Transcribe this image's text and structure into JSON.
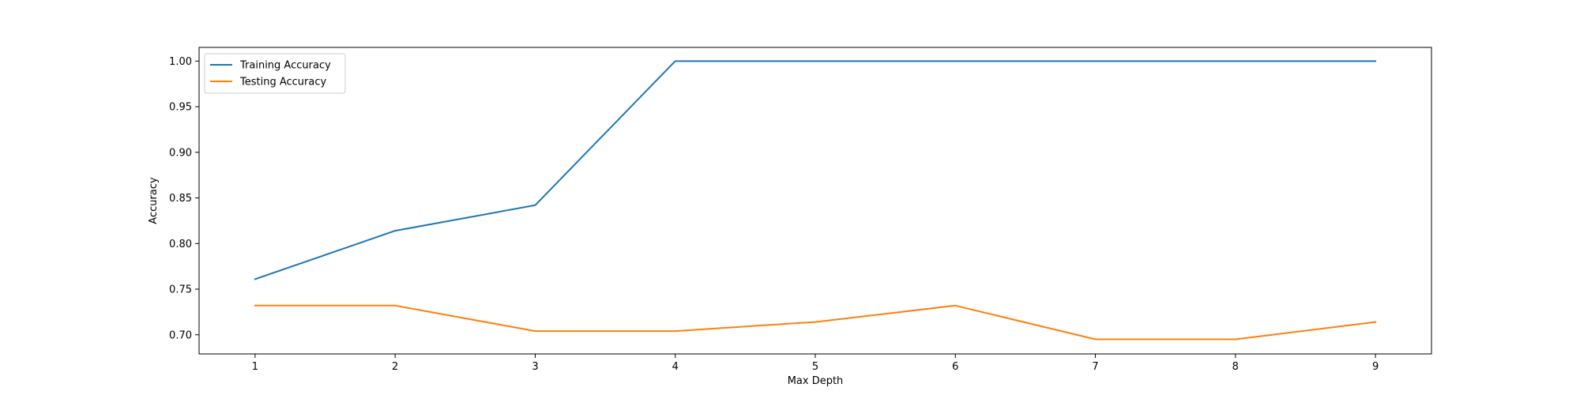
{
  "chart_data": {
    "type": "line",
    "title": "",
    "xlabel": "Max Depth",
    "ylabel": "Accuracy",
    "x": [
      1,
      2,
      3,
      4,
      5,
      6,
      7,
      8,
      9
    ],
    "xlim": [
      0.6,
      9.4
    ],
    "ylim": [
      0.679,
      1.015
    ],
    "xticks": [
      1,
      2,
      3,
      4,
      5,
      6,
      7,
      8,
      9
    ],
    "xtick_labels": [
      "1",
      "2",
      "3",
      "4",
      "5",
      "6",
      "7",
      "8",
      "9"
    ],
    "yticks": [
      0.7,
      0.75,
      0.8,
      0.85,
      0.9,
      0.95,
      1.0
    ],
    "ytick_labels": [
      "0.70",
      "0.75",
      "0.80",
      "0.85",
      "0.90",
      "0.95",
      "1.00"
    ],
    "grid": false,
    "legend_position": "top-left",
    "series": [
      {
        "name": "Training Accuracy",
        "color": "#1f77b4",
        "values": [
          0.761,
          0.814,
          0.842,
          1.0,
          1.0,
          1.0,
          1.0,
          1.0,
          1.0
        ]
      },
      {
        "name": "Testing Accuracy",
        "color": "#ff7f0e",
        "values": [
          0.732,
          0.732,
          0.704,
          0.704,
          0.714,
          0.732,
          0.695,
          0.695,
          0.714
        ]
      }
    ]
  }
}
